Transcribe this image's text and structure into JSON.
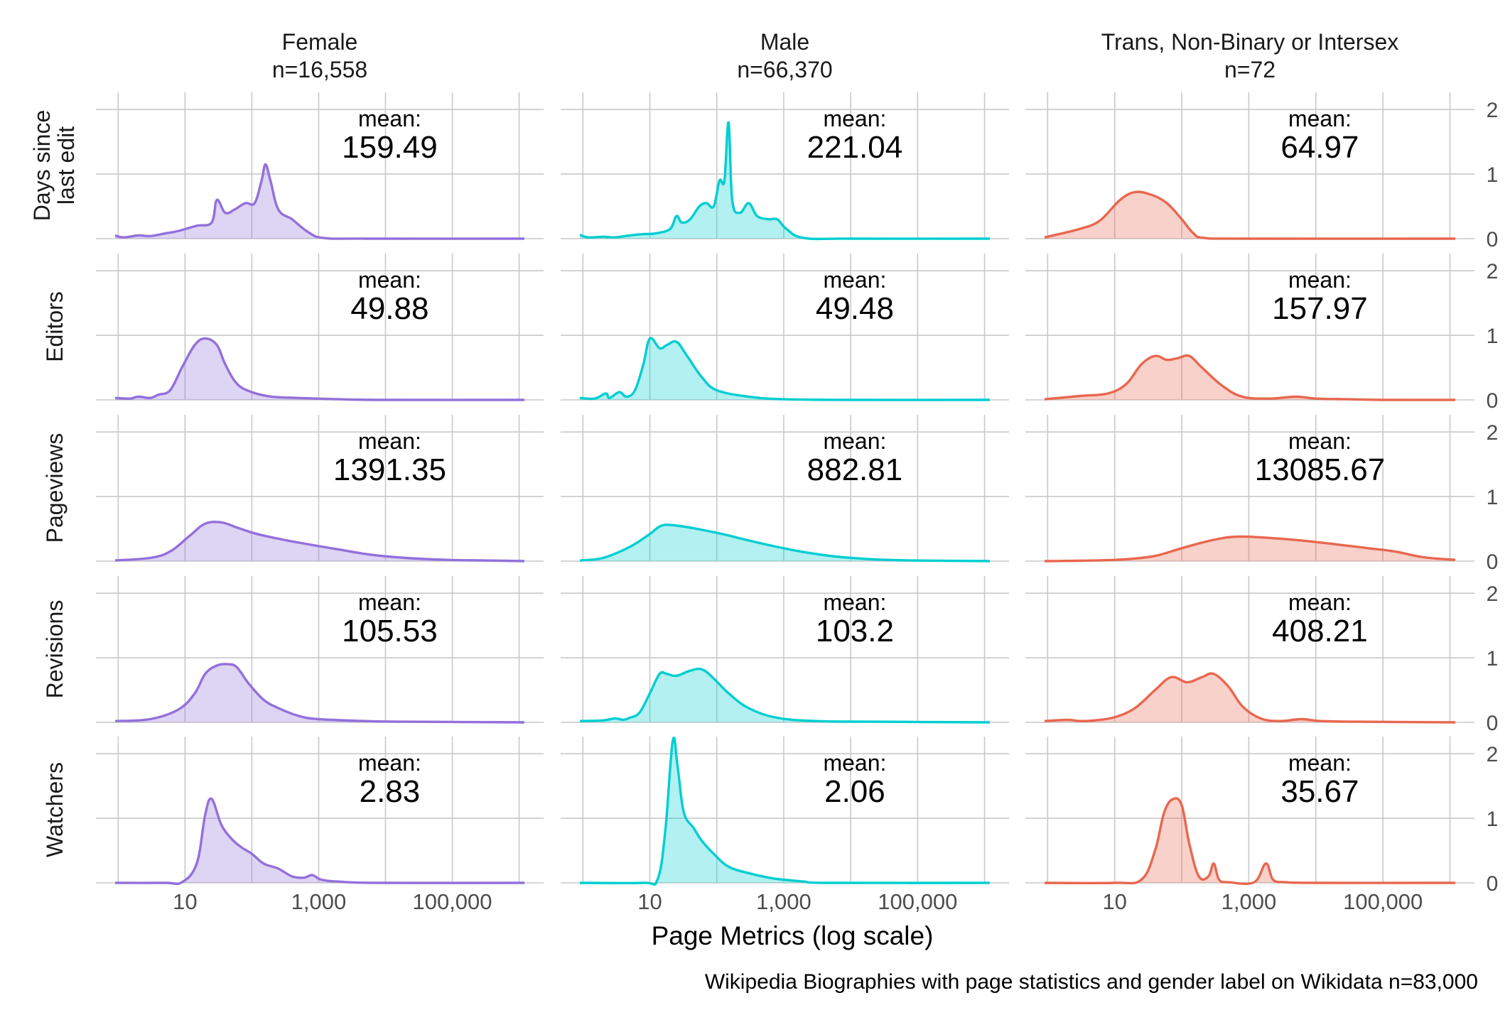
{
  "chart_data": {
    "type": "area",
    "subtype": "density ridge facet grid",
    "x_axis_label": "Page Metrics (log scale)",
    "x_scale": "log10",
    "x_range": [
      0.9,
      1200000
    ],
    "x_ticks": [
      10,
      1000,
      100000
    ],
    "x_tick_labels": [
      "10",
      "1,000",
      "100,000"
    ],
    "y_range": [
      0,
      2.2
    ],
    "y_ticks": [
      0,
      1,
      2
    ],
    "y_tick_labels": [
      "0",
      "1",
      "2"
    ],
    "caption": "Wikipedia Biographies with page statistics and gender label on Wikidata n=83,000",
    "mean_prefix": "mean:",
    "grid": true,
    "columns": [
      {
        "name": "Female",
        "n_label": "n=16,558",
        "color": "#9370DB"
      },
      {
        "name": "Male",
        "n_label": "n=66,370",
        "color": "#00CED1"
      },
      {
        "name": "Trans, Non-Binary or Intersex",
        "n_label": "n=72",
        "color": "#E8674F"
      }
    ],
    "rows": [
      "Days since last edit",
      "Editors",
      "Pageviews",
      "Revisions",
      "Watchers"
    ],
    "means": [
      [
        "159.49",
        "221.04",
        "64.97"
      ],
      [
        "49.88",
        "49.48",
        "157.97"
      ],
      [
        "1391.35",
        "882.81",
        "13085.67"
      ],
      [
        "105.53",
        "103.2",
        "408.21"
      ],
      [
        "2.83",
        "2.06",
        "35.67"
      ]
    ],
    "densities": [
      [
        [
          [
            0.9,
            0.05
          ],
          [
            1.2,
            0.02
          ],
          [
            2,
            0.05
          ],
          [
            3,
            0.04
          ],
          [
            5,
            0.08
          ],
          [
            8,
            0.12
          ],
          [
            15,
            0.2
          ],
          [
            25,
            0.25
          ],
          [
            30,
            0.6
          ],
          [
            40,
            0.4
          ],
          [
            55,
            0.45
          ],
          [
            80,
            0.55
          ],
          [
            110,
            0.55
          ],
          [
            140,
            0.9
          ],
          [
            160,
            1.15
          ],
          [
            190,
            0.9
          ],
          [
            250,
            0.45
          ],
          [
            400,
            0.3
          ],
          [
            700,
            0.1
          ],
          [
            1200,
            0.01
          ],
          [
            5000,
            0
          ],
          [
            1200000,
            0
          ]
        ],
        [
          [
            0.9,
            0.06
          ],
          [
            1.2,
            0.02
          ],
          [
            2,
            0.03
          ],
          [
            3,
            0.02
          ],
          [
            5,
            0.05
          ],
          [
            8,
            0.07
          ],
          [
            12,
            0.08
          ],
          [
            20,
            0.15
          ],
          [
            25,
            0.35
          ],
          [
            30,
            0.25
          ],
          [
            40,
            0.3
          ],
          [
            55,
            0.5
          ],
          [
            70,
            0.55
          ],
          [
            90,
            0.5
          ],
          [
            110,
            0.9
          ],
          [
            130,
            0.9
          ],
          [
            150,
            1.8
          ],
          [
            170,
            0.6
          ],
          [
            220,
            0.4
          ],
          [
            300,
            0.55
          ],
          [
            400,
            0.35
          ],
          [
            600,
            0.3
          ],
          [
            800,
            0.3
          ],
          [
            1100,
            0.15
          ],
          [
            2000,
            0.01
          ],
          [
            10000,
            0
          ],
          [
            1200000,
            0
          ]
        ],
        [
          [
            0.9,
            0.02
          ],
          [
            3,
            0.15
          ],
          [
            6,
            0.28
          ],
          [
            12,
            0.6
          ],
          [
            20,
            0.72
          ],
          [
            35,
            0.68
          ],
          [
            60,
            0.55
          ],
          [
            100,
            0.3
          ],
          [
            150,
            0.08
          ],
          [
            220,
            0.01
          ],
          [
            1000,
            0
          ],
          [
            1200000,
            0
          ]
        ]
      ],
      [
        [
          [
            0.9,
            0.03
          ],
          [
            1.5,
            0.02
          ],
          [
            2,
            0.05
          ],
          [
            3,
            0.03
          ],
          [
            4,
            0.08
          ],
          [
            6,
            0.15
          ],
          [
            9,
            0.5
          ],
          [
            14,
            0.85
          ],
          [
            20,
            0.95
          ],
          [
            30,
            0.85
          ],
          [
            40,
            0.55
          ],
          [
            60,
            0.25
          ],
          [
            100,
            0.12
          ],
          [
            200,
            0.05
          ],
          [
            500,
            0.03
          ],
          [
            2000,
            0.01
          ],
          [
            10000,
            0
          ],
          [
            1200000,
            0
          ]
        ],
        [
          [
            0.9,
            0.03
          ],
          [
            1.5,
            0.02
          ],
          [
            2.2,
            0.1
          ],
          [
            2.5,
            0.03
          ],
          [
            3.5,
            0.12
          ],
          [
            4.5,
            0.05
          ],
          [
            6,
            0.15
          ],
          [
            8,
            0.55
          ],
          [
            10,
            0.95
          ],
          [
            14,
            0.8
          ],
          [
            18,
            0.85
          ],
          [
            25,
            0.9
          ],
          [
            35,
            0.7
          ],
          [
            60,
            0.35
          ],
          [
            100,
            0.15
          ],
          [
            300,
            0.05
          ],
          [
            1000,
            0.01
          ],
          [
            10000,
            0
          ],
          [
            1200000,
            0
          ]
        ],
        [
          [
            0.9,
            0.01
          ],
          [
            3,
            0.06
          ],
          [
            8,
            0.1
          ],
          [
            15,
            0.25
          ],
          [
            25,
            0.55
          ],
          [
            40,
            0.68
          ],
          [
            60,
            0.62
          ],
          [
            90,
            0.65
          ],
          [
            130,
            0.68
          ],
          [
            200,
            0.5
          ],
          [
            400,
            0.22
          ],
          [
            800,
            0.05
          ],
          [
            2000,
            0.02
          ],
          [
            5000,
            0.05
          ],
          [
            10000,
            0.02
          ],
          [
            30000,
            0.01
          ],
          [
            100000,
            0
          ],
          [
            1200000,
            0
          ]
        ]
      ],
      [
        [
          [
            0.9,
            0.01
          ],
          [
            3,
            0.05
          ],
          [
            6,
            0.15
          ],
          [
            12,
            0.4
          ],
          [
            20,
            0.58
          ],
          [
            35,
            0.6
          ],
          [
            60,
            0.52
          ],
          [
            120,
            0.42
          ],
          [
            300,
            0.33
          ],
          [
            800,
            0.25
          ],
          [
            2000,
            0.18
          ],
          [
            6000,
            0.1
          ],
          [
            20000,
            0.05
          ],
          [
            80000,
            0.02
          ],
          [
            300000,
            0.01
          ],
          [
            1200000,
            0
          ]
        ],
        [
          [
            0.9,
            0.01
          ],
          [
            2,
            0.05
          ],
          [
            5,
            0.22
          ],
          [
            10,
            0.42
          ],
          [
            15,
            0.55
          ],
          [
            25,
            0.55
          ],
          [
            50,
            0.5
          ],
          [
            120,
            0.42
          ],
          [
            300,
            0.32
          ],
          [
            800,
            0.22
          ],
          [
            2000,
            0.14
          ],
          [
            6000,
            0.07
          ],
          [
            20000,
            0.03
          ],
          [
            80000,
            0.01
          ],
          [
            1200000,
            0
          ]
        ],
        [
          [
            0.9,
            0
          ],
          [
            5,
            0.01
          ],
          [
            15,
            0.03
          ],
          [
            40,
            0.08
          ],
          [
            100,
            0.2
          ],
          [
            300,
            0.33
          ],
          [
            700,
            0.38
          ],
          [
            2000,
            0.36
          ],
          [
            6000,
            0.32
          ],
          [
            20000,
            0.26
          ],
          [
            60000,
            0.2
          ],
          [
            150000,
            0.15
          ],
          [
            400000,
            0.06
          ],
          [
            1200000,
            0.02
          ]
        ]
      ],
      [
        [
          [
            0.9,
            0.02
          ],
          [
            3,
            0.05
          ],
          [
            8,
            0.2
          ],
          [
            14,
            0.45
          ],
          [
            20,
            0.75
          ],
          [
            30,
            0.88
          ],
          [
            45,
            0.9
          ],
          [
            60,
            0.85
          ],
          [
            90,
            0.6
          ],
          [
            150,
            0.35
          ],
          [
            250,
            0.22
          ],
          [
            500,
            0.1
          ],
          [
            1000,
            0.05
          ],
          [
            5000,
            0.02
          ],
          [
            20000,
            0.01
          ],
          [
            1200000,
            0
          ]
        ],
        [
          [
            0.9,
            0.02
          ],
          [
            2,
            0.03
          ],
          [
            3,
            0.06
          ],
          [
            4,
            0.04
          ],
          [
            5,
            0.07
          ],
          [
            7,
            0.15
          ],
          [
            10,
            0.45
          ],
          [
            14,
            0.75
          ],
          [
            18,
            0.75
          ],
          [
            25,
            0.72
          ],
          [
            40,
            0.8
          ],
          [
            60,
            0.82
          ],
          [
            90,
            0.68
          ],
          [
            150,
            0.45
          ],
          [
            300,
            0.22
          ],
          [
            800,
            0.07
          ],
          [
            3000,
            0.02
          ],
          [
            20000,
            0.01
          ],
          [
            1200000,
            0
          ]
        ],
        [
          [
            0.9,
            0.02
          ],
          [
            2,
            0.04
          ],
          [
            3,
            0.02
          ],
          [
            5,
            0.03
          ],
          [
            10,
            0.08
          ],
          [
            20,
            0.22
          ],
          [
            40,
            0.5
          ],
          [
            70,
            0.7
          ],
          [
            120,
            0.62
          ],
          [
            200,
            0.7
          ],
          [
            300,
            0.75
          ],
          [
            500,
            0.55
          ],
          [
            800,
            0.25
          ],
          [
            1500,
            0.06
          ],
          [
            3000,
            0.02
          ],
          [
            6000,
            0.05
          ],
          [
            12000,
            0.02
          ],
          [
            40000,
            0.01
          ],
          [
            1200000,
            0
          ]
        ]
      ],
      [
        [
          [
            0.9,
            0
          ],
          [
            5,
            0
          ],
          [
            9,
            0.01
          ],
          [
            15,
            0.3
          ],
          [
            20,
            1.05
          ],
          [
            25,
            1.3
          ],
          [
            35,
            0.9
          ],
          [
            50,
            0.68
          ],
          [
            70,
            0.55
          ],
          [
            100,
            0.45
          ],
          [
            150,
            0.3
          ],
          [
            250,
            0.22
          ],
          [
            400,
            0.1
          ],
          [
            600,
            0.08
          ],
          [
            800,
            0.12
          ],
          [
            1100,
            0.05
          ],
          [
            2000,
            0.02
          ],
          [
            8000,
            0
          ],
          [
            1200000,
            0
          ]
        ],
        [
          [
            0.9,
            0
          ],
          [
            8,
            0
          ],
          [
            13,
            0.05
          ],
          [
            17,
            0.8
          ],
          [
            22,
            2.2
          ],
          [
            26,
            1.8
          ],
          [
            32,
            1.1
          ],
          [
            45,
            0.85
          ],
          [
            60,
            0.65
          ],
          [
            90,
            0.45
          ],
          [
            150,
            0.25
          ],
          [
            300,
            0.15
          ],
          [
            600,
            0.08
          ],
          [
            1000,
            0.05
          ],
          [
            2000,
            0.02
          ],
          [
            5000,
            0
          ],
          [
            1200000,
            0
          ]
        ],
        [
          [
            0.9,
            0
          ],
          [
            10,
            0
          ],
          [
            25,
            0.05
          ],
          [
            40,
            0.5
          ],
          [
            55,
            1.1
          ],
          [
            75,
            1.3
          ],
          [
            100,
            1.2
          ],
          [
            130,
            0.6
          ],
          [
            180,
            0.1
          ],
          [
            250,
            0.1
          ],
          [
            300,
            0.3
          ],
          [
            360,
            0.05
          ],
          [
            500,
            0.01
          ],
          [
            1200,
            0.01
          ],
          [
            1800,
            0.3
          ],
          [
            2300,
            0.05
          ],
          [
            3500,
            0.01
          ],
          [
            10000,
            0
          ],
          [
            1200000,
            0
          ]
        ]
      ]
    ]
  }
}
